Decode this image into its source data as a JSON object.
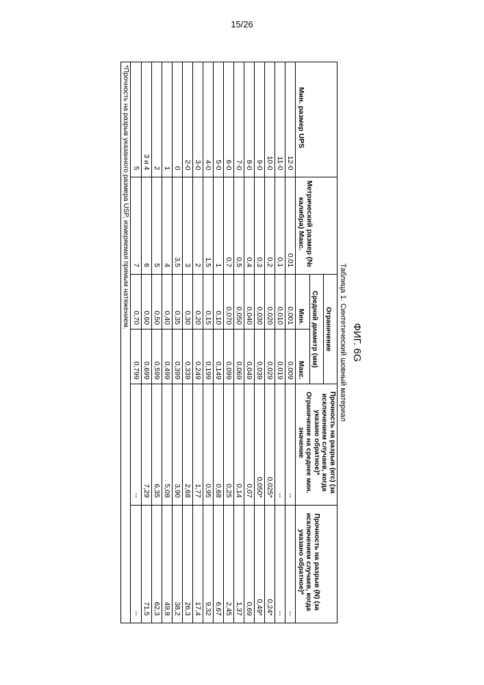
{
  "page_number": "15/26",
  "figure_label": "ФИГ. 6G",
  "table_caption": "Таблица 1. Синтетический шовный материал",
  "headers": {
    "usp": "Мин. размер UPS",
    "metric": "Метрический размер (№ калибра) Макс.",
    "limit": "Ограничение",
    "avg_diameter": "Средний диаметр (мм)",
    "min": "Мин.",
    "max": "Макс.",
    "kgf": "Прочность на разрыв (кгс) (за исключением случаев, когда указано обратное)* Ограничение на среднее мин. значение",
    "n": "Прочность на разрыв (N) (за исключением случаев, когда указано обратное)*"
  },
  "rows": [
    {
      "usp": "12-0",
      "metric": "0,01",
      "min": "0,001",
      "max": "0,009",
      "kgf": "--",
      "n": "--"
    },
    {
      "usp": "11-0",
      "metric": "0,1",
      "min": "0,010",
      "max": "0,019",
      "kgf": "--",
      "n": "--"
    },
    {
      "usp": "10-0",
      "metric": "0,2",
      "min": "0,020",
      "max": "0,029",
      "kgf": "0,025*",
      "n": "0,24*"
    },
    {
      "usp": "9-0",
      "metric": "0,3",
      "min": "0,030",
      "max": "0,039",
      "kgf": "0,050*",
      "n": "0,49*"
    },
    {
      "usp": "8-0",
      "metric": "0,4",
      "min": "0,040",
      "max": "0,049",
      "kgf": "0,07",
      "n": "0,69"
    },
    {
      "usp": "7-0",
      "metric": "0,5",
      "min": "0,050",
      "max": "0,069",
      "kgf": "0,14",
      "n": "1,37"
    },
    {
      "usp": "6-0",
      "metric": "0,7",
      "min": "0,070",
      "max": "0,099",
      "kgf": "0,25",
      "n": "2,45"
    },
    {
      "usp": "5-0",
      "metric": "1",
      "min": "0,10",
      "max": "0,149",
      "kgf": "0,68",
      "n": "6,67"
    },
    {
      "usp": "4-0",
      "metric": "1,5",
      "min": "0,15",
      "max": "0,199",
      "kgf": "0,95",
      "n": "9,32"
    },
    {
      "usp": "3-0",
      "metric": "2",
      "min": "0,20",
      "max": "0,249",
      "kgf": "1,77",
      "n": "17,4"
    },
    {
      "usp": "2-0",
      "metric": "3",
      "min": "0,30",
      "max": "0,339",
      "kgf": "2,68",
      "n": "26,3"
    },
    {
      "usp": "0",
      "metric": "3,5",
      "min": "0,35",
      "max": "0,399",
      "kgf": "3,90",
      "n": "38,2"
    },
    {
      "usp": "1",
      "metric": "4",
      "min": "0,40",
      "max": "0,499",
      "kgf": "5,08",
      "n": "49,8"
    },
    {
      "usp": "2",
      "metric": "5",
      "min": "0,50",
      "max": "0,599",
      "kgf": "6,35",
      "n": "62,3"
    },
    {
      "usp": "3 и 4",
      "metric": "6",
      "min": "0,60",
      "max": "0,699",
      "kgf": "7,29",
      "n": "71,5"
    },
    {
      "usp": "5",
      "metric": "7",
      "min": "0,70",
      "max": "0,799",
      "kgf": "--",
      "n": "--"
    }
  ],
  "footnote": "*Прочность на разрыв указанного размера USP, измеряемая прямым натяжением."
}
